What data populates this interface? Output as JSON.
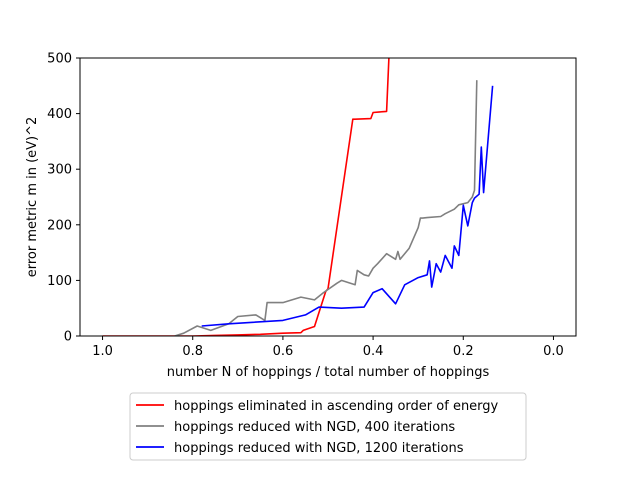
{
  "chart_data": {
    "type": "line",
    "xlabel": "number N of hoppings / total number of hoppings",
    "ylabel": "error metric m in (eV)^2",
    "xlim": [
      1.05,
      -0.05
    ],
    "ylim": [
      0,
      500
    ],
    "x_reversed": true,
    "grid": false,
    "legend_placement": "below",
    "xticks": [
      1.0,
      0.8,
      0.6,
      0.4,
      0.2,
      0.0
    ],
    "xtick_labels": [
      "1.0",
      "0.8",
      "0.6",
      "0.4",
      "0.2",
      "0.0"
    ],
    "yticks": [
      0,
      100,
      200,
      300,
      400,
      500
    ],
    "ytick_labels": [
      "0",
      "100",
      "200",
      "300",
      "400",
      "500"
    ],
    "series": [
      {
        "name": "hoppings eliminated in ascending order of energy",
        "color": "#ff0000",
        "x": [
          1.0,
          0.95,
          0.9,
          0.85,
          0.8,
          0.75,
          0.7,
          0.65,
          0.6,
          0.56,
          0.555,
          0.53,
          0.505,
          0.5,
          0.445,
          0.44,
          0.405,
          0.4,
          0.385,
          0.37,
          0.365
        ],
        "y": [
          0,
          0,
          0,
          0,
          0,
          1,
          2,
          3,
          5,
          6,
          10,
          17,
          80,
          85,
          390,
          390,
          391,
          402,
          403,
          404,
          500
        ]
      },
      {
        "name": "hoppings reduced with NGD, 400 iterations",
        "color": "#808080",
        "x": [
          0.84,
          0.82,
          0.79,
          0.76,
          0.72,
          0.7,
          0.66,
          0.64,
          0.635,
          0.6,
          0.56,
          0.53,
          0.51,
          0.48,
          0.47,
          0.44,
          0.435,
          0.42,
          0.41,
          0.4,
          0.39,
          0.37,
          0.35,
          0.345,
          0.34,
          0.32,
          0.3,
          0.295,
          0.29,
          0.28,
          0.25,
          0.24,
          0.22,
          0.21,
          0.19,
          0.18,
          0.175,
          0.17
        ],
        "y": [
          0,
          5,
          18,
          10,
          22,
          35,
          38,
          28,
          60,
          60,
          70,
          65,
          78,
          95,
          100,
          92,
          118,
          110,
          108,
          122,
          130,
          148,
          138,
          152,
          138,
          158,
          195,
          212,
          212,
          213,
          215,
          220,
          228,
          236,
          240,
          250,
          262,
          460
        ]
      },
      {
        "name": "hoppings reduced with NGD, 1200 iterations",
        "color": "#0000ff",
        "x": [
          0.78,
          0.72,
          0.6,
          0.55,
          0.52,
          0.47,
          0.42,
          0.4,
          0.38,
          0.35,
          0.33,
          0.3,
          0.28,
          0.275,
          0.27,
          0.26,
          0.25,
          0.24,
          0.225,
          0.22,
          0.21,
          0.2,
          0.19,
          0.18,
          0.175,
          0.165,
          0.16,
          0.155,
          0.135
        ],
        "y": [
          18,
          22,
          28,
          38,
          52,
          50,
          52,
          78,
          85,
          58,
          92,
          105,
          110,
          135,
          88,
          130,
          115,
          145,
          122,
          162,
          145,
          235,
          198,
          240,
          248,
          255,
          340,
          258,
          450
        ]
      }
    ]
  }
}
